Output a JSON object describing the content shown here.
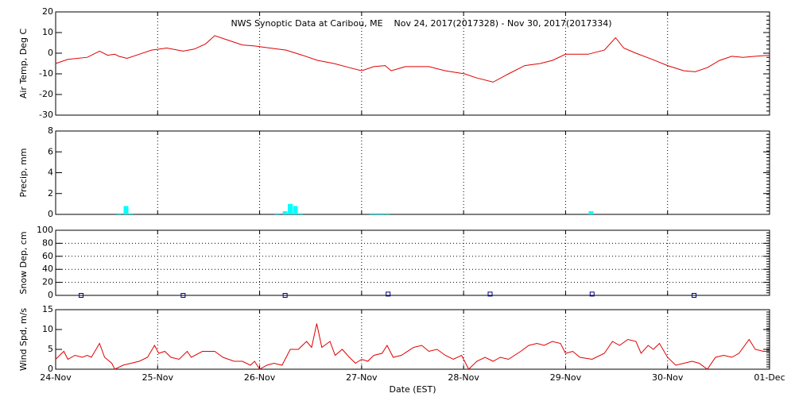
{
  "chart_data": [
    {
      "type": "line",
      "title": "NWS Synoptic Data at Caribou, ME    Nov 24, 2017(2017328) - Nov 30, 2017(2017334)",
      "ylabel": "Air Temp, Deg C",
      "color": "#e00000",
      "x": [
        0,
        0.12,
        0.31,
        0.43,
        0.51,
        0.58,
        0.62,
        0.7,
        0.82,
        0.94,
        1.09,
        1.25,
        1.36,
        1.47,
        1.56,
        1.68,
        1.83,
        1.95,
        2.1,
        2.26,
        2.42,
        2.57,
        2.73,
        2.88,
        3.0,
        3.12,
        3.23,
        3.29,
        3.43,
        3.66,
        3.82,
        4.01,
        4.13,
        4.29,
        4.44,
        4.6,
        4.75,
        4.87,
        5.0,
        5.22,
        5.38,
        5.49,
        5.57,
        5.69,
        5.85,
        6.0,
        6.16,
        6.27,
        6.39,
        6.51,
        6.63,
        6.74,
        6.86,
        7.0
      ],
      "values": [
        -5,
        -3,
        -2,
        1,
        -1,
        -0.5,
        -1.5,
        -2.5,
        -0.5,
        1.5,
        2.5,
        1,
        2,
        4.5,
        8.5,
        6.5,
        4,
        3.5,
        2.5,
        1.5,
        -1,
        -3.5,
        -5,
        -7,
        -8.5,
        -6.5,
        -6,
        -8.5,
        -6.5,
        -6.5,
        -8.5,
        -10,
        -12,
        -14,
        -10,
        -6,
        -5,
        -3.5,
        -0.5,
        -0.5,
        1.5,
        7.5,
        2.5,
        0,
        -3,
        -6,
        -8.5,
        -9,
        -7,
        -3.5,
        -1.5,
        -2,
        -1.5,
        -1
      ],
      "xlim": [
        0,
        7
      ],
      "xticks": [
        0,
        1,
        2,
        3,
        4,
        5,
        6,
        7
      ],
      "ylim": [
        -30,
        20
      ],
      "yticks": [
        -30,
        -20,
        -10,
        0,
        10,
        20
      ],
      "grid_x": true,
      "grid_y": false
    },
    {
      "type": "bar",
      "ylabel": "Precip, mm",
      "color": "#00ffff",
      "x": [
        0.62,
        0.69,
        0.74,
        2.17,
        2.25,
        2.3,
        2.35,
        2.4,
        3.1,
        3.15,
        3.2,
        3.25,
        5.25
      ],
      "values": [
        0.1,
        0.8,
        0.1,
        0.1,
        0.3,
        1.0,
        0.8,
        0.1,
        0.1,
        0.1,
        0.1,
        0.1,
        0.3
      ],
      "xlim": [
        0,
        7
      ],
      "xticks": [
        0,
        1,
        2,
        3,
        4,
        5,
        6,
        7
      ],
      "ylim": [
        0,
        8
      ],
      "yticks": [
        0,
        2,
        4,
        6,
        8
      ],
      "grid_x": true,
      "grid_y": false
    },
    {
      "type": "scatter",
      "ylabel": "Snow Dep, cm",
      "color": "#000080",
      "x": [
        0.25,
        1.25,
        2.25,
        3.26,
        4.26,
        5.26,
        6.26
      ],
      "values": [
        0,
        0,
        0,
        2,
        2,
        2,
        0
      ],
      "xlim": [
        0,
        7
      ],
      "xticks": [
        0,
        1,
        2,
        3,
        4,
        5,
        6,
        7
      ],
      "ylim": [
        0,
        100
      ],
      "yticks": [
        0,
        20,
        40,
        60,
        80,
        100
      ],
      "grid_x": true,
      "grid_y": true
    },
    {
      "type": "line",
      "ylabel": "Wind Spd, m/s",
      "xlabel": "Date (EST)",
      "color": "#e00000",
      "x": [
        0,
        0.08,
        0.12,
        0.19,
        0.26,
        0.31,
        0.35,
        0.43,
        0.48,
        0.55,
        0.58,
        0.66,
        0.74,
        0.82,
        0.9,
        0.97,
        1.01,
        1.07,
        1.13,
        1.21,
        1.29,
        1.33,
        1.44,
        1.56,
        1.64,
        1.75,
        1.83,
        1.91,
        1.95,
        2.0,
        2.07,
        2.14,
        2.22,
        2.3,
        2.38,
        2.46,
        2.51,
        2.56,
        2.61,
        2.69,
        2.74,
        2.81,
        2.88,
        2.94,
        3.0,
        3.06,
        3.12,
        3.2,
        3.25,
        3.31,
        3.39,
        3.51,
        3.59,
        3.66,
        3.74,
        3.82,
        3.9,
        3.98,
        4.05,
        4.13,
        4.21,
        4.29,
        4.36,
        4.44,
        4.56,
        4.64,
        4.72,
        4.79,
        4.87,
        4.95,
        5.0,
        5.07,
        5.14,
        5.26,
        5.38,
        5.46,
        5.53,
        5.61,
        5.69,
        5.74,
        5.81,
        5.86,
        5.92,
        6.0,
        6.08,
        6.16,
        6.24,
        6.31,
        6.39,
        6.47,
        6.55,
        6.63,
        6.7,
        6.8,
        6.86,
        6.94,
        7.0
      ],
      "values": [
        2.5,
        4.5,
        2.5,
        3.5,
        3,
        3.5,
        3,
        6.5,
        3,
        1.5,
        0,
        1,
        1.5,
        2,
        3,
        6,
        4,
        4.5,
        3,
        2.5,
        4.5,
        3,
        4.5,
        4.5,
        3,
        2,
        2,
        1,
        2,
        0,
        1,
        1.5,
        1,
        5,
        5,
        7,
        5.5,
        11.5,
        5.5,
        7,
        3.5,
        5,
        3,
        1.5,
        2.5,
        2,
        3.5,
        4,
        6,
        3,
        3.5,
        5.5,
        6,
        4.5,
        5,
        3.5,
        2.5,
        3.5,
        0,
        2,
        3,
        2,
        3,
        2.5,
        4.5,
        6,
        6.5,
        6,
        7,
        6.5,
        4,
        4.5,
        3,
        2.5,
        4,
        7,
        6,
        7.5,
        7,
        4,
        6,
        5,
        6.5,
        3,
        1,
        1.5,
        2,
        1.5,
        0,
        3,
        3.5,
        3,
        4,
        7.5,
        5,
        4.5,
        4.5
      ],
      "xlim": [
        0,
        7
      ],
      "xticks": [
        {
          "value": 0,
          "label": "24-Nov"
        },
        {
          "value": 1,
          "label": "25-Nov"
        },
        {
          "value": 2,
          "label": "26-Nov"
        },
        {
          "value": 3,
          "label": "27-Nov"
        },
        {
          "value": 4,
          "label": "28-Nov"
        },
        {
          "value": 5,
          "label": "29-Nov"
        },
        {
          "value": 6,
          "label": "30-Nov"
        },
        {
          "value": 7,
          "label": "01-Dec"
        }
      ],
      "ylim": [
        0,
        15
      ],
      "yticks": [
        0,
        5,
        10,
        15
      ],
      "grid_x": true,
      "grid_y": false
    }
  ]
}
